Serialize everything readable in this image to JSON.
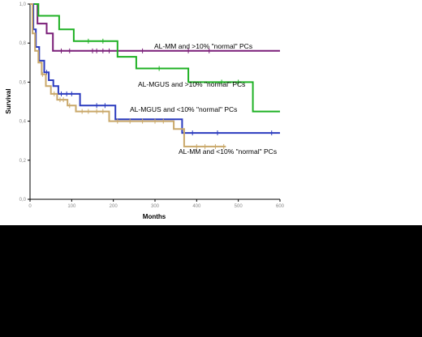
{
  "chart_data": {
    "type": "line",
    "subtype": "kaplan-meier",
    "title": "",
    "xlabel": "Months",
    "ylabel": "Survival",
    "xlim": [
      0,
      600
    ],
    "ylim": [
      0,
      1.0
    ],
    "x_ticks": [
      "0",
      "100",
      "200",
      "300",
      "400",
      "500",
      "600"
    ],
    "y_ticks": [
      "0,0",
      "0,2",
      "0,4",
      "0,6",
      "0,8",
      "1,0"
    ],
    "grid": false,
    "legend": "none (labels placed next to curves)",
    "series": [
      {
        "name": "AL-MM and >10% \"normal\" PCs",
        "color": "#7a1e78",
        "points": [
          [
            0,
            1.0
          ],
          [
            18,
            1.0
          ],
          [
            18,
            0.9
          ],
          [
            40,
            0.9
          ],
          [
            40,
            0.85
          ],
          [
            55,
            0.85
          ],
          [
            55,
            0.76
          ],
          [
            600,
            0.76
          ]
        ],
        "censored": [
          [
            75,
            0.76
          ],
          [
            95,
            0.76
          ],
          [
            150,
            0.76
          ],
          [
            160,
            0.76
          ],
          [
            175,
            0.76
          ],
          [
            190,
            0.76
          ],
          [
            270,
            0.76
          ],
          [
            380,
            0.76
          ],
          [
            430,
            0.76
          ]
        ]
      },
      {
        "name": "AL-MGUS and >10% \"normal\" PCs",
        "color": "#1fb124",
        "points": [
          [
            0,
            1.0
          ],
          [
            20,
            1.0
          ],
          [
            20,
            0.94
          ],
          [
            70,
            0.94
          ],
          [
            70,
            0.87
          ],
          [
            105,
            0.87
          ],
          [
            105,
            0.81
          ],
          [
            210,
            0.81
          ],
          [
            210,
            0.73
          ],
          [
            255,
            0.73
          ],
          [
            255,
            0.67
          ],
          [
            380,
            0.67
          ],
          [
            380,
            0.6
          ],
          [
            535,
            0.6
          ],
          [
            535,
            0.45
          ],
          [
            600,
            0.45
          ]
        ],
        "censored": [
          [
            140,
            0.81
          ],
          [
            175,
            0.81
          ],
          [
            310,
            0.67
          ],
          [
            460,
            0.6
          ],
          [
            500,
            0.6
          ]
        ]
      },
      {
        "name": "AL-MGUS and <10% \"normal\" PCs",
        "color": "#2b3bbf",
        "points": [
          [
            0,
            1.0
          ],
          [
            8,
            1.0
          ],
          [
            8,
            0.87
          ],
          [
            14,
            0.87
          ],
          [
            14,
            0.78
          ],
          [
            22,
            0.78
          ],
          [
            22,
            0.71
          ],
          [
            34,
            0.71
          ],
          [
            34,
            0.65
          ],
          [
            45,
            0.65
          ],
          [
            45,
            0.61
          ],
          [
            56,
            0.61
          ],
          [
            56,
            0.58
          ],
          [
            68,
            0.58
          ],
          [
            68,
            0.54
          ],
          [
            120,
            0.54
          ],
          [
            120,
            0.48
          ],
          [
            205,
            0.48
          ],
          [
            205,
            0.41
          ],
          [
            365,
            0.41
          ],
          [
            365,
            0.34
          ],
          [
            600,
            0.34
          ]
        ],
        "censored": [
          [
            40,
            0.65
          ],
          [
            75,
            0.54
          ],
          [
            88,
            0.54
          ],
          [
            100,
            0.54
          ],
          [
            160,
            0.48
          ],
          [
            180,
            0.48
          ],
          [
            390,
            0.34
          ],
          [
            450,
            0.34
          ],
          [
            580,
            0.34
          ]
        ]
      },
      {
        "name": "AL-MM and <10% \"normal\" PCs",
        "color": "#c9a86a",
        "points": [
          [
            0,
            1.0
          ],
          [
            6,
            1.0
          ],
          [
            6,
            0.85
          ],
          [
            12,
            0.85
          ],
          [
            12,
            0.76
          ],
          [
            20,
            0.76
          ],
          [
            20,
            0.7
          ],
          [
            28,
            0.7
          ],
          [
            28,
            0.64
          ],
          [
            38,
            0.64
          ],
          [
            38,
            0.58
          ],
          [
            50,
            0.58
          ],
          [
            50,
            0.54
          ],
          [
            65,
            0.54
          ],
          [
            65,
            0.51
          ],
          [
            90,
            0.51
          ],
          [
            90,
            0.48
          ],
          [
            110,
            0.48
          ],
          [
            110,
            0.45
          ],
          [
            190,
            0.45
          ],
          [
            190,
            0.4
          ],
          [
            345,
            0.4
          ],
          [
            345,
            0.36
          ],
          [
            370,
            0.36
          ],
          [
            370,
            0.27
          ],
          [
            470,
            0.27
          ]
        ],
        "censored": [
          [
            30,
            0.64
          ],
          [
            58,
            0.54
          ],
          [
            72,
            0.51
          ],
          [
            80,
            0.51
          ],
          [
            95,
            0.48
          ],
          [
            125,
            0.45
          ],
          [
            140,
            0.45
          ],
          [
            160,
            0.45
          ],
          [
            175,
            0.45
          ],
          [
            210,
            0.4
          ],
          [
            240,
            0.4
          ],
          [
            270,
            0.4
          ],
          [
            300,
            0.4
          ],
          [
            320,
            0.4
          ],
          [
            400,
            0.27
          ],
          [
            420,
            0.27
          ],
          [
            445,
            0.27
          ],
          [
            465,
            0.27
          ]
        ]
      }
    ]
  }
}
